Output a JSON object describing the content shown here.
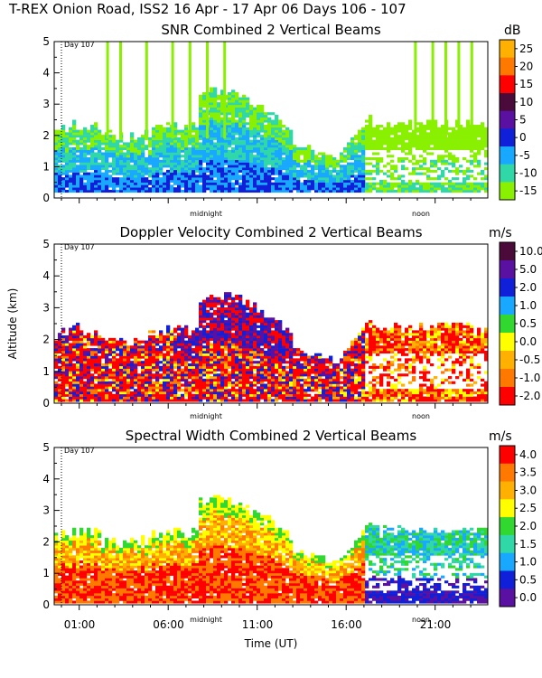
{
  "header": {
    "title": "T-REX Onion Road, ISS2  16 Apr - 17 Apr 06 Days 106 - 107"
  },
  "chart_data": [
    {
      "type": "heatmap",
      "title": "SNR Combined 2 Vertical Beams",
      "ylabel": "",
      "xlabel": "",
      "ylim": [
        0,
        5
      ],
      "yticks": [
        "0",
        "1",
        "2",
        "3",
        "4",
        "5"
      ],
      "day_marker": "Day 107",
      "time_markers": [
        "midnight",
        "noon"
      ],
      "colorbar": {
        "unit": "dB",
        "labels": [
          "25",
          "20",
          "15",
          "10",
          "5",
          "0",
          "-5",
          "-10",
          "-15"
        ]
      }
    },
    {
      "type": "heatmap",
      "title": "Doppler Velocity Combined 2 Vertical Beams",
      "ylabel": "Altitude (km)",
      "xlabel": "",
      "ylim": [
        0,
        5
      ],
      "yticks": [
        "0",
        "1",
        "2",
        "3",
        "4",
        "5"
      ],
      "day_marker": "Day 107",
      "time_markers": [
        "midnight",
        "noon"
      ],
      "colorbar": {
        "unit": "m/s",
        "labels": [
          "10.0",
          "5.0",
          "2.0",
          "1.0",
          "0.5",
          "0.0",
          "-0.5",
          "-1.0",
          "-2.0"
        ]
      }
    },
    {
      "type": "heatmap",
      "title": "Spectral Width Combined 2 Vertical Beams",
      "ylabel": "",
      "xlabel": "Time (UT)",
      "ylim": [
        0,
        5
      ],
      "yticks": [
        "0",
        "1",
        "2",
        "3",
        "4",
        "5"
      ],
      "xticks": [
        "01:00",
        "06:00",
        "11:00",
        "16:00",
        "21:00"
      ],
      "day_marker": "Day 107",
      "time_markers": [
        "midnight",
        "noon"
      ],
      "colorbar": {
        "unit": "m/s",
        "labels": [
          "4.0",
          "3.5",
          "3.0",
          "2.5",
          "2.0",
          "1.5",
          "1.0",
          "0.5",
          "0.0"
        ]
      }
    }
  ],
  "colors": {
    "snr_scale": [
      "#ffb000",
      "#ff7800",
      "#ff0000",
      "#4a0a3a",
      "#5a10a0",
      "#1020d8",
      "#18a8ff",
      "#30d8a8",
      "#88f000"
    ],
    "vel_scale": [
      "#4a0a3a",
      "#5a10a0",
      "#1020d8",
      "#18a8ff",
      "#30d830",
      "#ffff00",
      "#ffb000",
      "#ff7800",
      "#ff0000"
    ],
    "sw_scale": [
      "#ff0000",
      "#ff7800",
      "#ffb000",
      "#ffff00",
      "#30d830",
      "#30d8a8",
      "#18a8ff",
      "#1020d8",
      "#5a10a0"
    ]
  }
}
